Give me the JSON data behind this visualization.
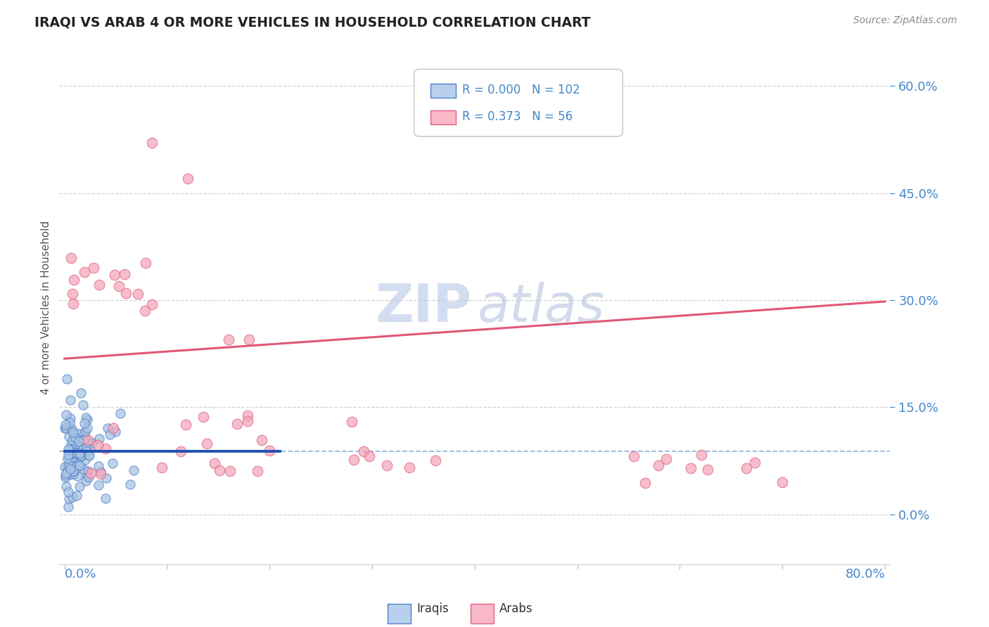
{
  "title": "IRAQI VS ARAB 4 OR MORE VEHICLES IN HOUSEHOLD CORRELATION CHART",
  "source": "Source: ZipAtlas.com",
  "ylabel": "4 or more Vehicles in Household",
  "ytick_vals": [
    0.0,
    0.15,
    0.3,
    0.45,
    0.6
  ],
  "ytick_labels": [
    "0.0%",
    "15.0%",
    "30.0%",
    "45.0%",
    "60.0%"
  ],
  "xmin": 0.0,
  "xmax": 0.8,
  "ymin": -0.07,
  "ymax": 0.65,
  "iraqi_R": "0.000",
  "iraqi_N": "102",
  "arab_R": "0.373",
  "arab_N": "56",
  "iraqi_scatter_color": "#a8c4e2",
  "arab_scatter_color": "#f4a8bc",
  "iraqi_edge_color": "#5080c8",
  "arab_edge_color": "#e06080",
  "iraqi_line_color": "#2050b0",
  "arab_line_color": "#e05878",
  "legend_iraqi_fill": "#b8d0ee",
  "legend_arab_fill": "#f8b8c8",
  "iraqi_line_x": [
    0.0,
    0.21
  ],
  "iraqi_line_y": [
    0.088,
    0.088
  ],
  "iraqi_hline_y": 0.088,
  "arab_line_x": [
    0.0,
    0.8
  ],
  "arab_line_y": [
    0.218,
    0.298
  ],
  "title_color": "#222222",
  "axis_label_color": "#4488cc",
  "tick_color": "#4488cc",
  "grid_color": "#c8c8c8",
  "background_color": "#ffffff",
  "watermark_zip_color": "#ccd8ee",
  "watermark_atlas_color": "#ccd4e8"
}
